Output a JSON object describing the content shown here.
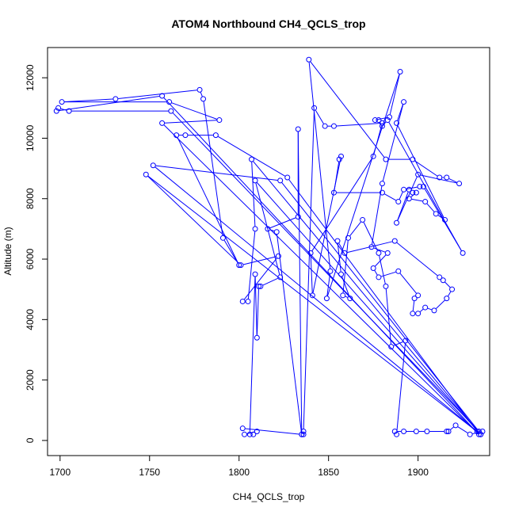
{
  "chart_data": {
    "type": "line",
    "title": "ATOM4 Northbound CH4_QCLS_trop",
    "xlabel": "CH4_QCLS_trop",
    "ylabel": "Altitude (m)",
    "xlim": [
      1693,
      1940
    ],
    "ylim": [
      -500,
      13000
    ],
    "x_ticks": [
      1700,
      1750,
      1800,
      1850,
      1900
    ],
    "y_ticks": [
      0,
      2000,
      4000,
      6000,
      8000,
      10000,
      12000
    ],
    "series": [
      {
        "color": "#0000ff",
        "marker": "open-circle",
        "points": [
          [
            1933,
            300
          ],
          [
            1827,
            8700
          ],
          [
            1787,
            10100
          ],
          [
            1770,
            10100
          ],
          [
            1765,
            10100
          ],
          [
            1800,
            5800
          ],
          [
            1791,
            6700
          ],
          [
            1780,
            11300
          ],
          [
            1778,
            11600
          ],
          [
            1731,
            11300
          ],
          [
            1701,
            11200
          ],
          [
            1761,
            11200
          ],
          [
            1789,
            10600
          ],
          [
            1757,
            10500
          ],
          [
            1934,
            200
          ],
          [
            1757,
            11400
          ],
          [
            1698,
            10900
          ],
          [
            1699,
            11000
          ],
          [
            1705,
            10900
          ],
          [
            1762,
            10900
          ],
          [
            1934,
            300
          ],
          [
            1823,
            8600
          ],
          [
            1752,
            9100
          ],
          [
            1935,
            200
          ],
          [
            1748,
            8800
          ],
          [
            1801,
            5800
          ],
          [
            1822,
            6100
          ],
          [
            1802,
            4600
          ],
          [
            1805,
            4600
          ],
          [
            1809,
            7000
          ],
          [
            1807,
            9300
          ],
          [
            1935,
            200
          ],
          [
            1809,
            8600
          ],
          [
            1823,
            5400
          ],
          [
            1812,
            5100
          ],
          [
            1811,
            5100
          ],
          [
            1810,
            3400
          ],
          [
            1809,
            5500
          ],
          [
            1806,
            200
          ],
          [
            1808,
            200
          ],
          [
            1810,
            300
          ],
          [
            1803,
            200
          ],
          [
            1802,
            400
          ],
          [
            1835,
            200
          ],
          [
            1833,
            10300
          ],
          [
            1833,
            7400
          ],
          [
            1816,
            7000
          ],
          [
            1821,
            6900
          ],
          [
            1835,
            200
          ],
          [
            1836,
            200
          ],
          [
            1836,
            300
          ],
          [
            1842,
            11000
          ],
          [
            1848,
            10400
          ],
          [
            1853,
            10400
          ],
          [
            1880,
            10500
          ],
          [
            1875,
            9400
          ],
          [
            1840,
            6200
          ],
          [
            1841,
            4800
          ],
          [
            1857,
            9400
          ],
          [
            1856,
            9300
          ],
          [
            1853,
            8200
          ],
          [
            1880,
            8200
          ],
          [
            1889,
            7900
          ],
          [
            1892,
            8300
          ],
          [
            1901,
            8400
          ],
          [
            1903,
            8400
          ],
          [
            1925,
            6200
          ],
          [
            1883,
            10600
          ],
          [
            1880,
            10400
          ],
          [
            1878,
            10600
          ],
          [
            1876,
            10600
          ],
          [
            1884,
            10700
          ],
          [
            1890,
            12200
          ],
          [
            1849,
            4700
          ],
          [
            1851,
            5600
          ],
          [
            1839,
            12600
          ],
          [
            1882,
            9300
          ],
          [
            1897,
            9300
          ],
          [
            1912,
            8700
          ],
          [
            1916,
            8700
          ],
          [
            1923,
            8500
          ],
          [
            1900,
            8800
          ],
          [
            1888,
            7200
          ],
          [
            1895,
            8300
          ],
          [
            1897,
            8200
          ],
          [
            1899,
            8200
          ],
          [
            1895,
            8000
          ],
          [
            1904,
            7900
          ],
          [
            1910,
            7500
          ],
          [
            1915,
            7300
          ],
          [
            1888,
            10500
          ],
          [
            1892,
            11200
          ],
          [
            1880,
            8500
          ],
          [
            1874,
            6400
          ],
          [
            1883,
            6200
          ],
          [
            1875,
            5700
          ],
          [
            1878,
            5400
          ],
          [
            1889,
            5600
          ],
          [
            1900,
            4800
          ],
          [
            1898,
            4700
          ],
          [
            1897,
            4200
          ],
          [
            1900,
            4200
          ],
          [
            1904,
            4400
          ],
          [
            1909,
            4300
          ],
          [
            1916,
            4700
          ],
          [
            1919,
            5000
          ],
          [
            1914,
            5300
          ],
          [
            1912,
            5400
          ],
          [
            1887,
            6600
          ],
          [
            1859,
            6200
          ],
          [
            1855,
            6600
          ],
          [
            1857,
            5500
          ],
          [
            1862,
            4700
          ],
          [
            1858,
            4800
          ],
          [
            1861,
            6700
          ],
          [
            1869,
            7300
          ],
          [
            1878,
            6200
          ],
          [
            1882,
            5100
          ],
          [
            1885,
            3100
          ],
          [
            1893,
            3300
          ],
          [
            1888,
            200
          ],
          [
            1887,
            300
          ],
          [
            1892,
            300
          ],
          [
            1899,
            300
          ],
          [
            1905,
            300
          ],
          [
            1916,
            300
          ],
          [
            1917,
            300
          ],
          [
            1921,
            500
          ],
          [
            1929,
            200
          ],
          [
            1936,
            300
          ]
        ]
      }
    ]
  }
}
